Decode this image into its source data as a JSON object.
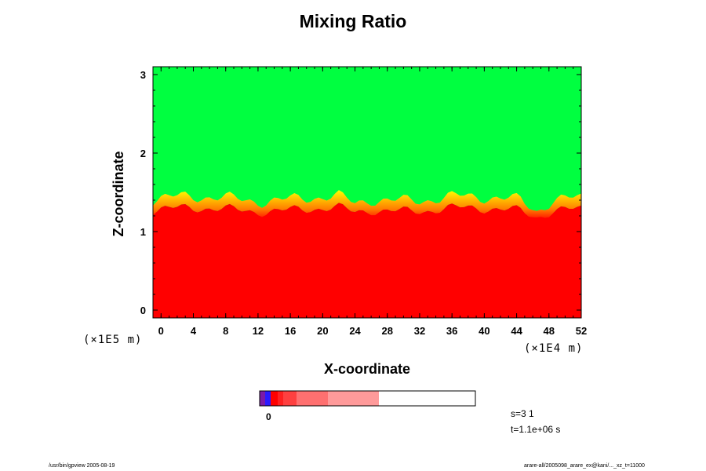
{
  "chart_data": {
    "type": "heatmap",
    "title": "Mixing Ratio",
    "xlabel": "X-coordinate",
    "ylabel": "Z-coordinate",
    "x_unit": "(×1E4 m)",
    "y_unit": "(×1E5 m)",
    "xlim": [
      -1,
      52
    ],
    "ylim": [
      -0.1,
      3.1
    ],
    "x_ticks": [
      0,
      4,
      8,
      12,
      16,
      20,
      24,
      28,
      32,
      36,
      40,
      44,
      48,
      52
    ],
    "y_ticks": [
      0,
      1,
      2,
      3
    ],
    "colorbar": {
      "tick_label": "0",
      "colors": [
        "#7a1aa8",
        "#2a1aff",
        "#ff0000",
        "#ff2020",
        "#ff4040",
        "#ff7070",
        "#ff9a9a"
      ]
    },
    "fields": {
      "upper_color": "#00ff40",
      "lower_color": "#ff0000",
      "transition_colors": [
        "#ffff00",
        "#ffbb00",
        "#ff7a00",
        "#ff4000"
      ],
      "interface_height": 1.3
    }
  },
  "stats": {
    "s": "s=3 1",
    "t": "t=1.1e+06 s"
  },
  "footer": {
    "left": "/usr/bin/gpview 2005-08-19",
    "right": "arare-all/2005098_arare_ex@kani/..._xz_t=11000"
  }
}
